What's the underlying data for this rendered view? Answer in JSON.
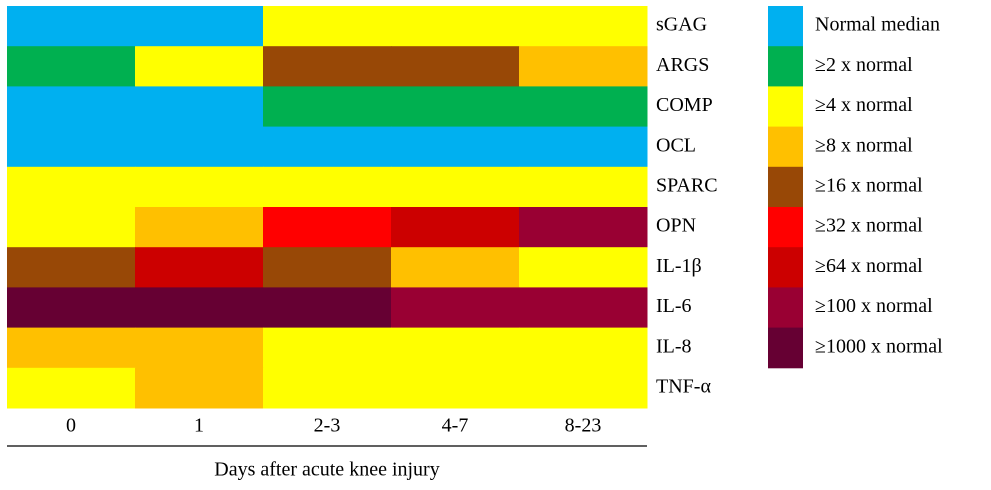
{
  "chart_data": {
    "type": "heatmap",
    "x_label": "Days after acute knee injury",
    "columns": [
      "0",
      "1",
      "2-3",
      "4-7",
      "8-23"
    ],
    "rows": [
      "sGAG",
      "ARGS",
      "COMP",
      "OCL",
      "SPARC",
      "OPN",
      "IL-1β",
      "IL-6",
      "IL-8",
      "TNF-α"
    ],
    "levels": [
      {
        "label": "Normal median",
        "value": 1,
        "color": "#00b0f0"
      },
      {
        "label": "≥2 x normal",
        "value": 2,
        "color": "#00b050"
      },
      {
        "label": "≥4 x normal",
        "value": 4,
        "color": "#ffff00"
      },
      {
        "label": "≥8 x normal",
        "value": 8,
        "color": "#ffc000"
      },
      {
        "label": "≥16 x normal",
        "value": 16,
        "color": "#984806"
      },
      {
        "label": "≥32 x normal",
        "value": 32,
        "color": "#ff0000"
      },
      {
        "label": "≥64 x normal",
        "value": 64,
        "color": "#cc0000"
      },
      {
        "label": "≥100 x normal",
        "value": 100,
        "color": "#990033"
      },
      {
        "label": "≥1000 x normal",
        "value": 1000,
        "color": "#660033"
      }
    ],
    "values": [
      [
        1,
        1,
        4,
        4,
        4
      ],
      [
        2,
        4,
        16,
        16,
        8
      ],
      [
        1,
        1,
        2,
        2,
        2
      ],
      [
        1,
        1,
        1,
        1,
        1
      ],
      [
        4,
        4,
        4,
        4,
        4
      ],
      [
        4,
        8,
        32,
        64,
        100
      ],
      [
        16,
        64,
        16,
        8,
        4
      ],
      [
        1000,
        1000,
        1000,
        100,
        100
      ],
      [
        8,
        8,
        4,
        4,
        4
      ],
      [
        4,
        8,
        4,
        4,
        4
      ]
    ]
  }
}
